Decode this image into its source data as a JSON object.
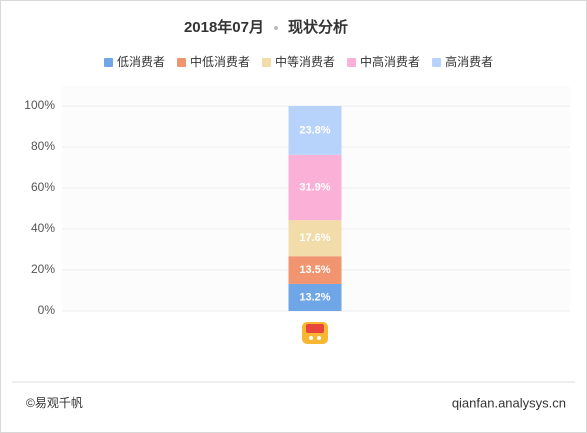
{
  "chart_data": {
    "type": "stacked-bar",
    "title": "2018年07月",
    "subtitle": "现状分析",
    "categories": [
      null
    ],
    "series": [
      {
        "name": "低消费者",
        "color": "#6ea6e8",
        "values": [
          13.2
        ],
        "value_labels": [
          "13.2%"
        ]
      },
      {
        "name": "中低消费者",
        "color": "#f0956f",
        "values": [
          13.5
        ],
        "value_labels": [
          "13.5%"
        ]
      },
      {
        "name": "中等消费者",
        "color": "#f2dcaa",
        "values": [
          17.6
        ],
        "value_labels": [
          "17.6%"
        ]
      },
      {
        "name": "中高消费者",
        "color": "#fbb0d8",
        "values": [
          31.9
        ],
        "value_labels": [
          "31.9%"
        ]
      },
      {
        "name": "高消费者",
        "color": "#b8d3fb",
        "values": [
          23.8
        ],
        "value_labels": [
          "23.8%"
        ]
      }
    ],
    "ylim": [
      0,
      100
    ],
    "yticks": [
      {
        "value": 0,
        "label": "0%"
      },
      {
        "value": 20,
        "label": "20%"
      },
      {
        "value": 40,
        "label": "40%"
      },
      {
        "value": 60,
        "label": "60%"
      },
      {
        "value": 80,
        "label": "80%"
      },
      {
        "value": 100,
        "label": "100%"
      }
    ],
    "grid": true,
    "legend": "top"
  },
  "footer": {
    "left": "©易观千帆",
    "right": "qianfan.analysys.cn"
  }
}
